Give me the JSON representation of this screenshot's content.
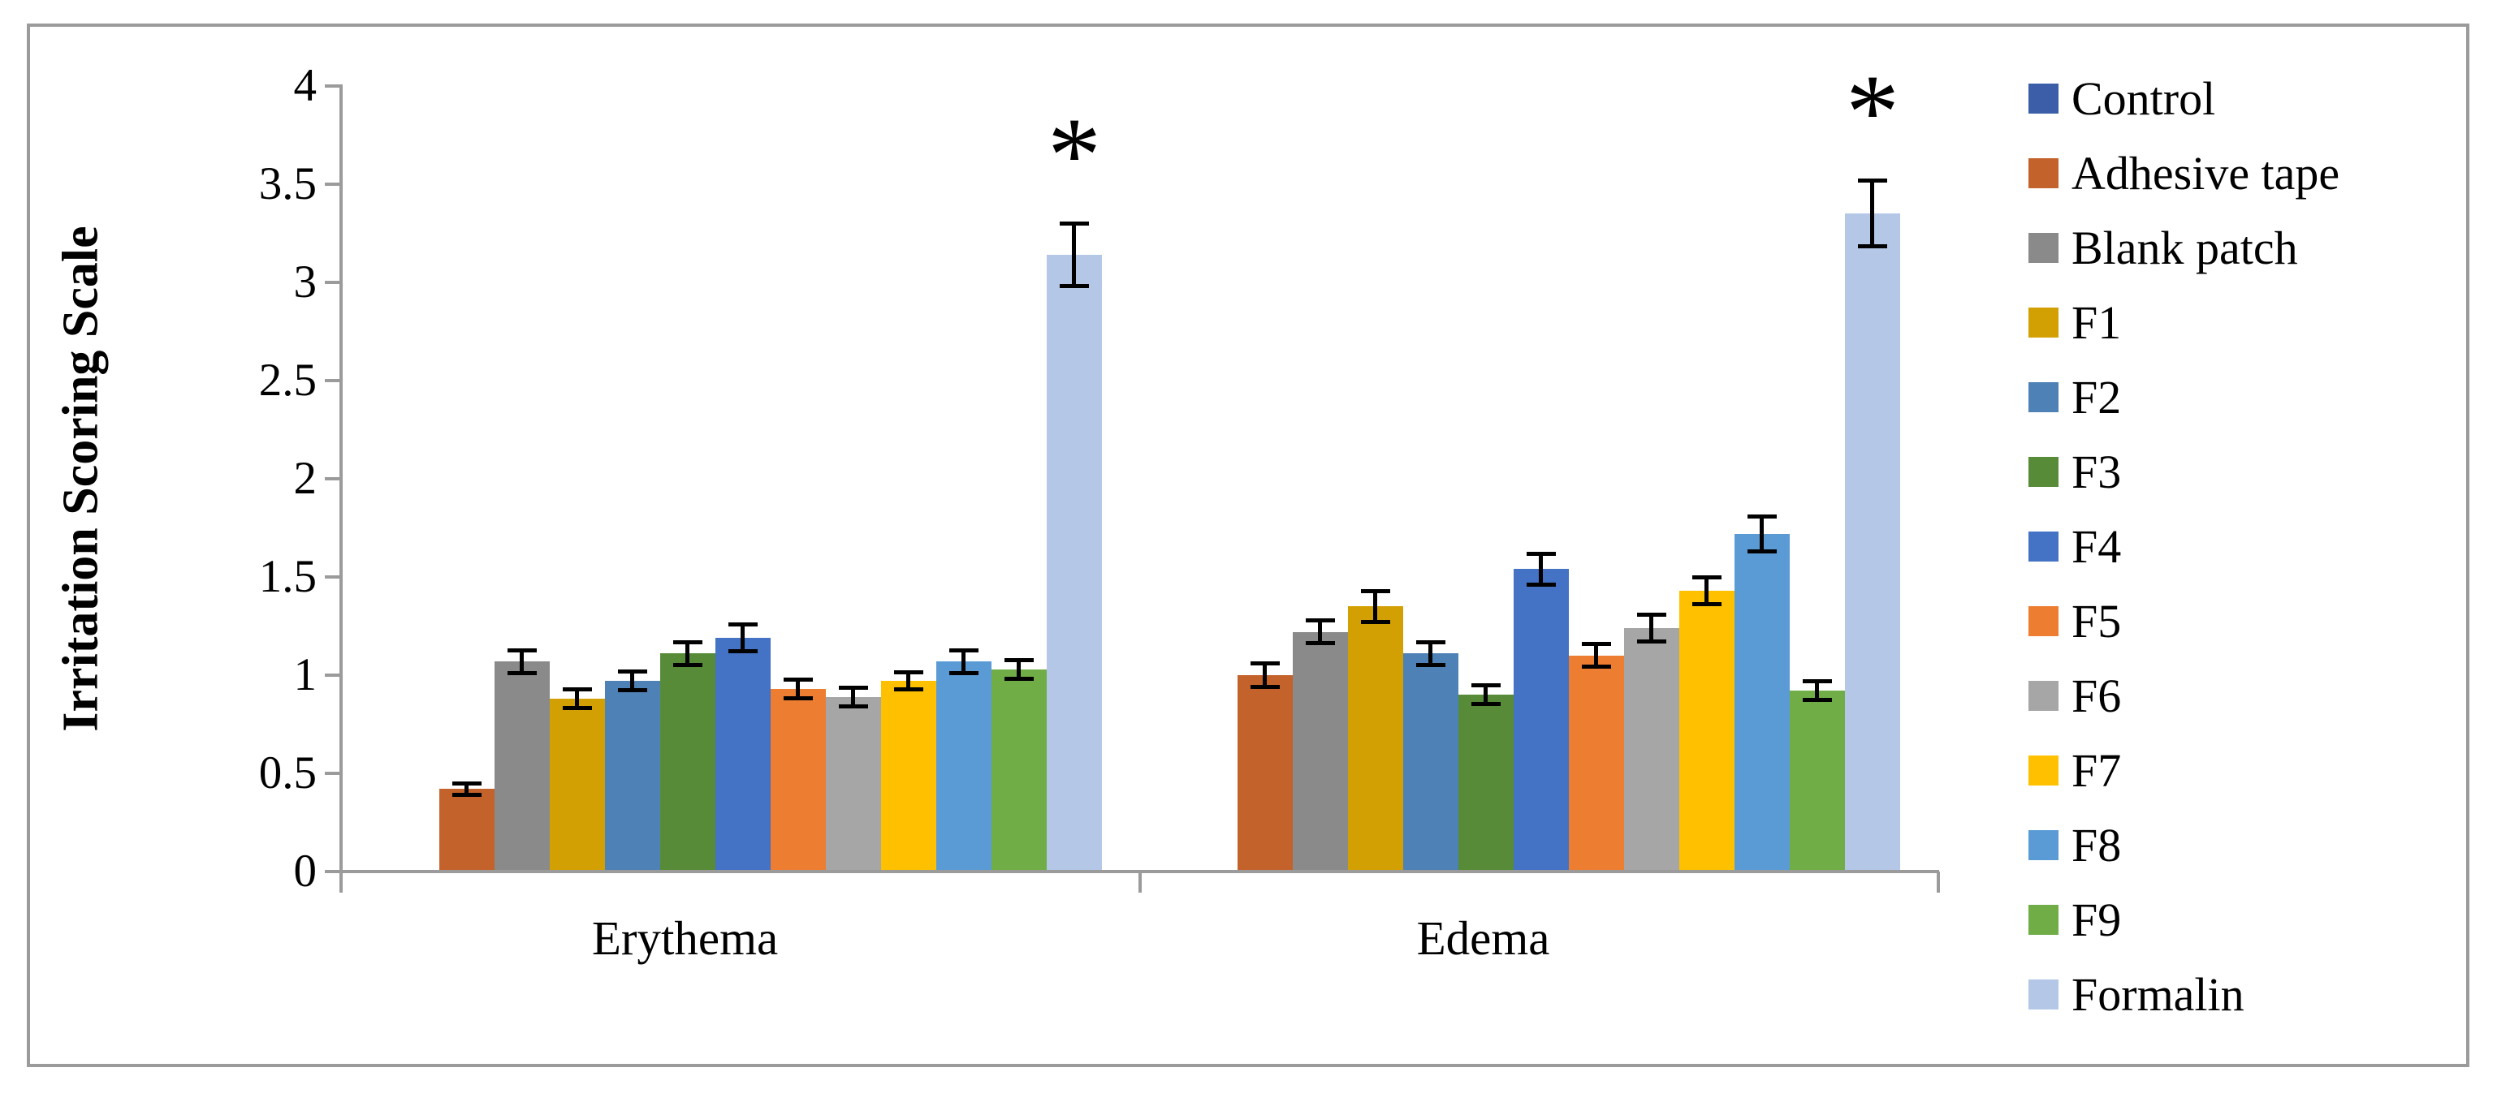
{
  "figure": {
    "frame_color": "#9b9b9b",
    "axis_color": "#9b9b9b",
    "error_bar_color": "#000000",
    "background": "#ffffff"
  },
  "chart_data": {
    "type": "bar",
    "title": "",
    "ylabel": "Irritation Scoring Scale",
    "xlabel": "",
    "ylim": [
      0,
      4
    ],
    "ytick_step": 0.5,
    "yticks": [
      "4",
      "3.5",
      "3",
      "2.5",
      "2",
      "1.5",
      "1",
      "0.5",
      "0"
    ],
    "categories": [
      "Erythema",
      "Edema"
    ],
    "grid": false,
    "legend_position": "right",
    "error_bars": true,
    "annotation_note": "asterisk marks significance above Formalin bars in both categories",
    "series": [
      {
        "name": "Control",
        "color": "#3C5EA8",
        "values": [
          0,
          0
        ],
        "errors": [
          0,
          0
        ]
      },
      {
        "name": "Adhesive tape",
        "color": "#C4622B",
        "values": [
          0.42,
          1.0
        ],
        "errors": [
          0.03,
          0.06
        ]
      },
      {
        "name": "Blank patch",
        "color": "#8A8A8A",
        "values": [
          1.07,
          1.22
        ],
        "errors": [
          0.06,
          0.06
        ]
      },
      {
        "name": "F1",
        "color": "#D3A004",
        "values": [
          0.88,
          1.35
        ],
        "errors": [
          0.05,
          0.08
        ]
      },
      {
        "name": "F2",
        "color": "#4E81B5",
        "values": [
          0.97,
          1.11
        ],
        "errors": [
          0.05,
          0.06
        ]
      },
      {
        "name": "F3",
        "color": "#578B38",
        "values": [
          1.11,
          0.9
        ],
        "errors": [
          0.06,
          0.05
        ]
      },
      {
        "name": "F4",
        "color": "#4472C4",
        "values": [
          1.19,
          1.54
        ],
        "errors": [
          0.07,
          0.08
        ]
      },
      {
        "name": "F5",
        "color": "#ED7D31",
        "values": [
          0.93,
          1.1
        ],
        "errors": [
          0.05,
          0.06
        ]
      },
      {
        "name": "F6",
        "color": "#A6A6A6",
        "values": [
          0.89,
          1.24
        ],
        "errors": [
          0.05,
          0.07
        ]
      },
      {
        "name": "F7",
        "color": "#FFC000",
        "values": [
          0.97,
          1.43
        ],
        "errors": [
          0.045,
          0.07
        ]
      },
      {
        "name": "F8",
        "color": "#5B9BD5",
        "values": [
          1.07,
          1.72
        ],
        "errors": [
          0.06,
          0.09
        ]
      },
      {
        "name": "F9",
        "color": "#70AD47",
        "values": [
          1.03,
          0.92
        ],
        "errors": [
          0.05,
          0.05
        ]
      },
      {
        "name": "Formalin",
        "color": "#B4C7E7",
        "values": [
          3.14,
          3.35
        ],
        "errors": [
          0.16,
          0.17
        ],
        "sig": [
          "*",
          "*"
        ]
      }
    ]
  }
}
